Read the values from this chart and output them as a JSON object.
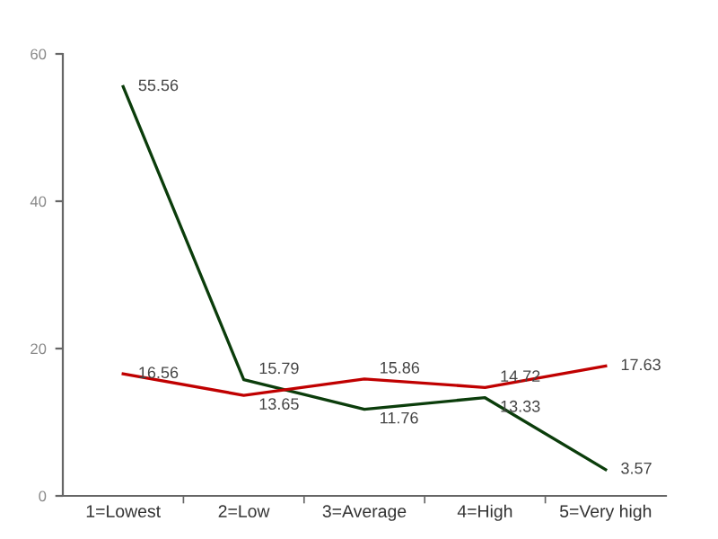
{
  "chart_data": {
    "type": "line",
    "categories": [
      "1=Lowest",
      "2=Low",
      "3=Average",
      "4=High",
      "5=Very high"
    ],
    "series": [
      {
        "color": "#0b3d0b",
        "values": [
          55.56,
          15.79,
          11.76,
          13.33,
          3.57
        ]
      },
      {
        "color": "#c00000",
        "values": [
          16.56,
          13.65,
          15.86,
          14.72,
          17.63
        ]
      }
    ],
    "ylim": [
      0,
      60
    ],
    "yticks": [
      0,
      20,
      40,
      60
    ],
    "grid": false,
    "marker": "none",
    "line_style": "solid",
    "data_labels": true
  }
}
